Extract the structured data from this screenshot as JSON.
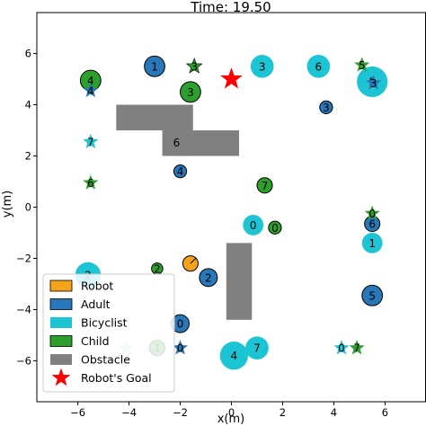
{
  "chart_data": {
    "type": "scatter",
    "title": "Time: 19.50",
    "xlabel": "x(m)",
    "ylabel": "y(m)",
    "xlim": [
      -7.6,
      7.6
    ],
    "ylim": [
      -7.6,
      7.6
    ],
    "xticks": [
      -6,
      -4,
      -2,
      0,
      2,
      4,
      6
    ],
    "yticks": [
      -6,
      -4,
      -2,
      0,
      2,
      4,
      6
    ],
    "tick_labels": [
      "−6",
      "−4",
      "−2",
      "0",
      "2",
      "4",
      "6"
    ],
    "grid": false,
    "legend_position": "lower-left",
    "colors": {
      "robot": "#f5a31a",
      "adult": "#2877b8",
      "bicyclist": "#1cc4d4",
      "child": "#2ca02c",
      "obstacle": "#808080",
      "goal": "#ff0000",
      "lost_marker": "#a6e0e8"
    },
    "legend": [
      {
        "label": "Robot",
        "kind": "robot"
      },
      {
        "label": "Adult",
        "kind": "adult"
      },
      {
        "label": "Bicyclist",
        "kind": "bicyclist"
      },
      {
        "label": "Child",
        "kind": "child"
      },
      {
        "label": "Obstacle",
        "kind": "obstacle"
      },
      {
        "label": "Robot's Goal",
        "kind": "goal"
      }
    ],
    "robot": {
      "x": -1.6,
      "y": -2.2,
      "r": 0.3
    },
    "goal": {
      "x": 0.0,
      "y": 5.0
    },
    "obstacles": [
      {
        "x0": -4.5,
        "y0": 3.0,
        "x1": -1.5,
        "y1": 4.0,
        "label": ""
      },
      {
        "x0": -2.7,
        "y0": 2.0,
        "x1": 0.3,
        "y1": 3.0,
        "label": "6"
      },
      {
        "x0": -0.2,
        "y0": -4.4,
        "x1": 0.8,
        "y1": -1.4,
        "label": ""
      }
    ],
    "agents": [
      {
        "kind": "adult",
        "id": "1",
        "x": -3.0,
        "y": 5.5,
        "r": 0.4
      },
      {
        "kind": "adult",
        "id": "3",
        "x": 3.7,
        "y": 3.9,
        "r": 0.25
      },
      {
        "kind": "adult",
        "id": "4",
        "x": -2.0,
        "y": 1.4,
        "r": 0.25
      },
      {
        "kind": "adult",
        "id": "2",
        "x": -0.9,
        "y": -2.75,
        "r": 0.35
      },
      {
        "kind": "adult",
        "id": "0",
        "x": -2.0,
        "y": -4.55,
        "r": 0.35
      },
      {
        "kind": "adult",
        "id": "6",
        "x": 5.5,
        "y": -0.65,
        "r": 0.3
      },
      {
        "kind": "adult",
        "id": "5",
        "x": 5.5,
        "y": -3.45,
        "r": 0.4
      },
      {
        "kind": "bicyclist",
        "id": "3",
        "x": 1.2,
        "y": 5.5,
        "r": 0.45
      },
      {
        "kind": "bicyclist",
        "id": "6",
        "x": 3.4,
        "y": 5.5,
        "r": 0.45
      },
      {
        "kind": "bicyclist",
        "id": "5",
        "x": 5.5,
        "y": 4.9,
        "r": 0.6
      },
      {
        "kind": "bicyclist",
        "id": "0",
        "x": 0.85,
        "y": -0.7,
        "r": 0.4
      },
      {
        "kind": "bicyclist",
        "id": "1",
        "x": 5.5,
        "y": -1.4,
        "r": 0.4
      },
      {
        "kind": "bicyclist",
        "id": "2",
        "x": -5.6,
        "y": -2.65,
        "r": 0.5
      },
      {
        "kind": "bicyclist",
        "id": "4",
        "x": 0.1,
        "y": -5.8,
        "r": 0.55
      },
      {
        "kind": "bicyclist",
        "id": "7",
        "x": 1.0,
        "y": -5.5,
        "r": 0.45
      },
      {
        "kind": "child",
        "id": "4",
        "x": -5.5,
        "y": 4.95,
        "r": 0.4
      },
      {
        "kind": "child",
        "id": "3",
        "x": -1.6,
        "y": 4.5,
        "r": 0.4
      },
      {
        "kind": "child",
        "id": "7",
        "x": 1.3,
        "y": 0.85,
        "r": 0.3
      },
      {
        "kind": "child",
        "id": "0",
        "x": 1.7,
        "y": -0.8,
        "r": 0.25
      },
      {
        "kind": "child",
        "id": "2",
        "x": -2.9,
        "y": -2.4,
        "r": 0.22
      },
      {
        "kind": "child",
        "id": "1",
        "x": -2.9,
        "y": -5.5,
        "r": 0.3
      }
    ],
    "goal_markers": [
      {
        "kind": "child",
        "id": "3",
        "x": -1.45,
        "y": 5.5,
        "outline": true
      },
      {
        "kind": "child",
        "id": "5",
        "x": 5.1,
        "y": 5.55,
        "outline": false
      },
      {
        "kind": "adult",
        "id": "3",
        "x": 5.55,
        "y": 4.85,
        "outline": false
      },
      {
        "kind": "adult",
        "id": "4",
        "x": -5.5,
        "y": 4.55,
        "outline": false
      },
      {
        "kind": "bicyclist",
        "id": "7",
        "x": -5.5,
        "y": 2.55,
        "outline": false
      },
      {
        "kind": "child",
        "id": "6",
        "x": -5.5,
        "y": 0.95,
        "outline": false
      },
      {
        "kind": "child",
        "id": "0",
        "x": 5.5,
        "y": -0.25,
        "outline": false
      },
      {
        "kind": "adult",
        "id": "0",
        "x": -2.0,
        "y": -5.5,
        "outline": false
      },
      {
        "kind": "lost",
        "id": "",
        "x": -4.1,
        "y": -5.5,
        "outline": false
      },
      {
        "kind": "bicyclist",
        "id": "0",
        "x": 4.3,
        "y": -5.5,
        "outline": false
      },
      {
        "kind": "child",
        "id": "7",
        "x": 4.9,
        "y": -5.5,
        "outline": false
      }
    ]
  }
}
